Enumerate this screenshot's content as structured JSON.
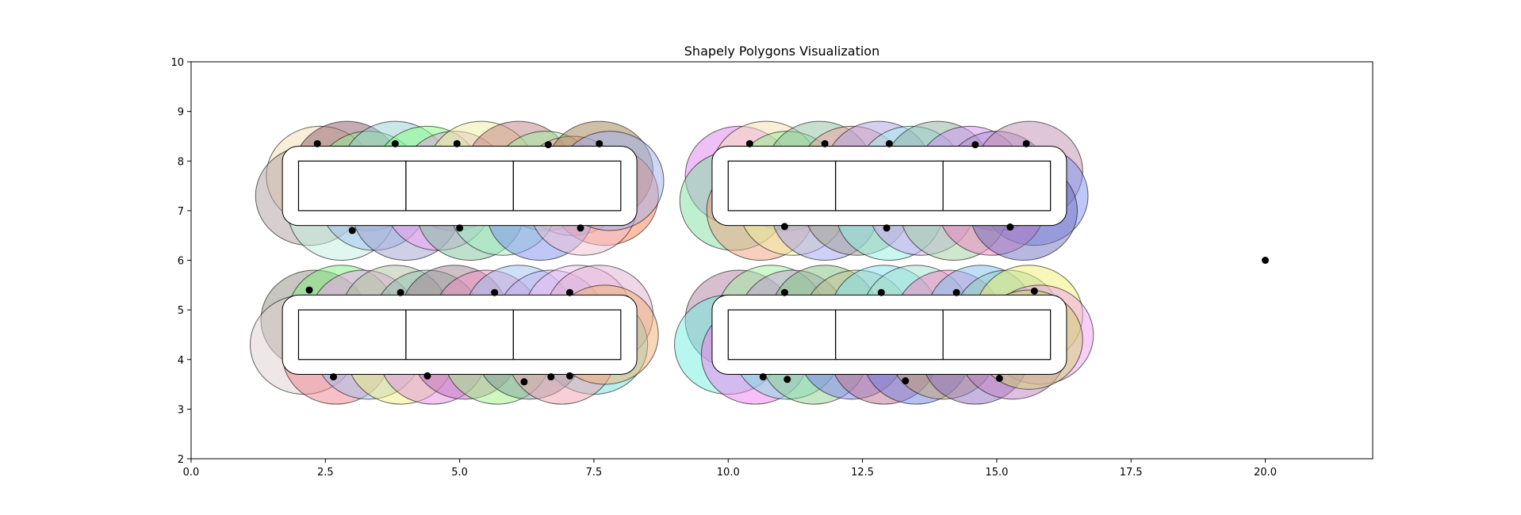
{
  "chart_data": {
    "type": "scatter",
    "title": "Shapely Polygons Visualization",
    "xlabel": "",
    "ylabel": "",
    "xlim": [
      0,
      22
    ],
    "ylim": [
      2,
      10
    ],
    "xticks": [
      0.0,
      2.5,
      5.0,
      7.5,
      10.0,
      12.5,
      15.0,
      17.5,
      20.0
    ],
    "xtick_labels": [
      "0.0",
      "2.5",
      "5.0",
      "7.5",
      "10.0",
      "12.5",
      "15.0",
      "17.5",
      "20.0"
    ],
    "yticks": [
      2,
      3,
      4,
      5,
      6,
      7,
      8,
      9,
      10
    ],
    "ytick_labels": [
      "2",
      "3",
      "4",
      "5",
      "6",
      "7",
      "8",
      "9",
      "10"
    ],
    "grid": false,
    "legend": "none",
    "point_color": "#000000",
    "circle_radius": 1.0,
    "circle_alpha": 0.5,
    "buffer_distance": 0.3,
    "rectangles": [
      {
        "x0": 2,
        "x1": 4,
        "y0": 7,
        "y1": 8
      },
      {
        "x0": 4,
        "x1": 6,
        "y0": 7,
        "y1": 8
      },
      {
        "x0": 6,
        "x1": 8,
        "y0": 7,
        "y1": 8
      },
      {
        "x0": 10,
        "x1": 12,
        "y0": 7,
        "y1": 8
      },
      {
        "x0": 12,
        "x1": 14,
        "y0": 7,
        "y1": 8
      },
      {
        "x0": 14,
        "x1": 16,
        "y0": 7,
        "y1": 8
      },
      {
        "x0": 2,
        "x1": 4,
        "y0": 4,
        "y1": 5
      },
      {
        "x0": 4,
        "x1": 6,
        "y0": 4,
        "y1": 5
      },
      {
        "x0": 6,
        "x1": 8,
        "y0": 4,
        "y1": 5
      },
      {
        "x0": 10,
        "x1": 12,
        "y0": 4,
        "y1": 5
      },
      {
        "x0": 12,
        "x1": 14,
        "y0": 4,
        "y1": 5
      },
      {
        "x0": 14,
        "x1": 16,
        "y0": 4,
        "y1": 5
      }
    ],
    "circles": [
      {
        "x": 2.4,
        "y": 7.7,
        "color": "#f5deb3"
      },
      {
        "x": 2.9,
        "y": 7.8,
        "color": "#8b5a6a"
      },
      {
        "x": 3.3,
        "y": 7.6,
        "color": "#90ee90"
      },
      {
        "x": 3.8,
        "y": 7.8,
        "color": "#9ad0d0"
      },
      {
        "x": 4.4,
        "y": 7.7,
        "color": "#7fff7f"
      },
      {
        "x": 4.9,
        "y": 7.6,
        "color": "#e0a0e0"
      },
      {
        "x": 5.4,
        "y": 7.8,
        "color": "#f0f0a0"
      },
      {
        "x": 6.1,
        "y": 7.8,
        "color": "#c08080"
      },
      {
        "x": 6.6,
        "y": 7.6,
        "color": "#a0f0a0"
      },
      {
        "x": 7.1,
        "y": 7.5,
        "color": "#ffb0c0"
      },
      {
        "x": 7.6,
        "y": 7.8,
        "color": "#a08050"
      },
      {
        "x": 7.7,
        "y": 7.3,
        "color": "#ff7f50"
      },
      {
        "x": 2.2,
        "y": 7.3,
        "color": "#b0a0a0"
      },
      {
        "x": 2.8,
        "y": 7.0,
        "color": "#c0f0e0"
      },
      {
        "x": 3.4,
        "y": 7.2,
        "color": "#a0c0f0"
      },
      {
        "x": 4.0,
        "y": 7.0,
        "color": "#a0a0d0"
      },
      {
        "x": 4.6,
        "y": 7.2,
        "color": "#f0a0f0"
      },
      {
        "x": 5.2,
        "y": 7.0,
        "color": "#80c0a0"
      },
      {
        "x": 5.8,
        "y": 7.1,
        "color": "#a0f0c0"
      },
      {
        "x": 6.5,
        "y": 7.0,
        "color": "#8090f0"
      },
      {
        "x": 7.3,
        "y": 7.1,
        "color": "#f0c0d0"
      },
      {
        "x": 7.8,
        "y": 7.6,
        "color": "#a0b0f0"
      },
      {
        "x": 10.2,
        "y": 7.7,
        "color": "#e080f0"
      },
      {
        "x": 10.7,
        "y": 7.8,
        "color": "#f5deb3"
      },
      {
        "x": 11.1,
        "y": 7.6,
        "color": "#90ee90"
      },
      {
        "x": 11.7,
        "y": 7.8,
        "color": "#90c0a0"
      },
      {
        "x": 12.3,
        "y": 7.7,
        "color": "#f0a0a0"
      },
      {
        "x": 12.8,
        "y": 7.8,
        "color": "#b0a0e0"
      },
      {
        "x": 13.4,
        "y": 7.7,
        "color": "#a0f0f0"
      },
      {
        "x": 13.9,
        "y": 7.8,
        "color": "#90b0a0"
      },
      {
        "x": 14.5,
        "y": 7.7,
        "color": "#d090f0"
      },
      {
        "x": 15.0,
        "y": 7.6,
        "color": "#b090d0"
      },
      {
        "x": 15.6,
        "y": 7.8,
        "color": "#c090b0"
      },
      {
        "x": 15.7,
        "y": 7.3,
        "color": "#8090f0"
      },
      {
        "x": 10.1,
        "y": 7.2,
        "color": "#80e0a0"
      },
      {
        "x": 10.6,
        "y": 7.0,
        "color": "#f0a080"
      },
      {
        "x": 11.2,
        "y": 7.1,
        "color": "#f0f0a0"
      },
      {
        "x": 11.8,
        "y": 7.0,
        "color": "#a0a0f0"
      },
      {
        "x": 12.4,
        "y": 7.1,
        "color": "#a0a090"
      },
      {
        "x": 13.0,
        "y": 7.0,
        "color": "#90f0e0"
      },
      {
        "x": 13.6,
        "y": 7.1,
        "color": "#d0a0f0"
      },
      {
        "x": 14.2,
        "y": 7.0,
        "color": "#a0d0a0"
      },
      {
        "x": 14.9,
        "y": 7.1,
        "color": "#f080c0"
      },
      {
        "x": 15.5,
        "y": 7.0,
        "color": "#7070c0"
      },
      {
        "x": 2.3,
        "y": 4.8,
        "color": "#909080"
      },
      {
        "x": 2.8,
        "y": 4.9,
        "color": "#80f080"
      },
      {
        "x": 3.2,
        "y": 4.8,
        "color": "#f0a0f0"
      },
      {
        "x": 3.8,
        "y": 4.9,
        "color": "#b0c0a0"
      },
      {
        "x": 4.4,
        "y": 4.8,
        "color": "#90c0b0"
      },
      {
        "x": 4.9,
        "y": 4.9,
        "color": "#a08090"
      },
      {
        "x": 5.5,
        "y": 4.8,
        "color": "#f090c0"
      },
      {
        "x": 6.1,
        "y": 4.9,
        "color": "#a0c0f0"
      },
      {
        "x": 6.7,
        "y": 4.8,
        "color": "#c0b0f0"
      },
      {
        "x": 7.2,
        "y": 4.9,
        "color": "#f0c0f0"
      },
      {
        "x": 7.6,
        "y": 4.9,
        "color": "#e0b0d0"
      },
      {
        "x": 7.5,
        "y": 4.3,
        "color": "#70e0e0"
      },
      {
        "x": 2.1,
        "y": 4.3,
        "color": "#e0d0d0"
      },
      {
        "x": 2.7,
        "y": 4.1,
        "color": "#f08090"
      },
      {
        "x": 3.3,
        "y": 4.2,
        "color": "#a0c0f0"
      },
      {
        "x": 3.9,
        "y": 4.1,
        "color": "#f0f080"
      },
      {
        "x": 4.5,
        "y": 4.1,
        "color": "#e090e0"
      },
      {
        "x": 5.1,
        "y": 4.2,
        "color": "#c070c0"
      },
      {
        "x": 5.7,
        "y": 4.1,
        "color": "#a0f080"
      },
      {
        "x": 6.3,
        "y": 4.2,
        "color": "#80a0a0"
      },
      {
        "x": 6.9,
        "y": 4.1,
        "color": "#f0a0b0"
      },
      {
        "x": 7.7,
        "y": 4.5,
        "color": "#f0b070"
      },
      {
        "x": 10.2,
        "y": 4.8,
        "color": "#b080a0"
      },
      {
        "x": 10.8,
        "y": 4.9,
        "color": "#a0f0a0"
      },
      {
        "x": 11.2,
        "y": 4.8,
        "color": "#c0a0d0"
      },
      {
        "x": 11.8,
        "y": 4.9,
        "color": "#80c080"
      },
      {
        "x": 12.4,
        "y": 4.8,
        "color": "#c0c090"
      },
      {
        "x": 12.9,
        "y": 4.9,
        "color": "#80e0f0"
      },
      {
        "x": 13.5,
        "y": 4.9,
        "color": "#a0e0d0"
      },
      {
        "x": 14.1,
        "y": 4.8,
        "color": "#f080c0"
      },
      {
        "x": 14.7,
        "y": 4.9,
        "color": "#80c0f0"
      },
      {
        "x": 15.2,
        "y": 4.8,
        "color": "#90d0c0"
      },
      {
        "x": 15.6,
        "y": 4.9,
        "color": "#f0f070"
      },
      {
        "x": 15.8,
        "y": 4.5,
        "color": "#f0a0f0"
      },
      {
        "x": 10.0,
        "y": 4.3,
        "color": "#70f0e0"
      },
      {
        "x": 10.5,
        "y": 4.1,
        "color": "#f080f0"
      },
      {
        "x": 11.1,
        "y": 4.2,
        "color": "#80e0e0"
      },
      {
        "x": 11.6,
        "y": 4.1,
        "color": "#90d090"
      },
      {
        "x": 12.3,
        "y": 4.2,
        "color": "#8080f0"
      },
      {
        "x": 12.9,
        "y": 4.1,
        "color": "#c07090"
      },
      {
        "x": 13.5,
        "y": 4.1,
        "color": "#7080e0"
      },
      {
        "x": 14.0,
        "y": 4.2,
        "color": "#c0a070"
      },
      {
        "x": 14.6,
        "y": 4.1,
        "color": "#9070c0"
      },
      {
        "x": 15.3,
        "y": 4.2,
        "color": "#c080c0"
      },
      {
        "x": 15.6,
        "y": 4.4,
        "color": "#d0d070"
      }
    ],
    "points": [
      {
        "x": 2.35,
        "y": 8.35
      },
      {
        "x": 3.8,
        "y": 8.35
      },
      {
        "x": 4.95,
        "y": 8.35
      },
      {
        "x": 6.65,
        "y": 8.33
      },
      {
        "x": 7.6,
        "y": 8.35
      },
      {
        "x": 3.0,
        "y": 6.6
      },
      {
        "x": 5.0,
        "y": 6.65
      },
      {
        "x": 7.25,
        "y": 6.65
      },
      {
        "x": 10.4,
        "y": 8.35
      },
      {
        "x": 11.8,
        "y": 8.35
      },
      {
        "x": 13.0,
        "y": 8.35
      },
      {
        "x": 14.6,
        "y": 8.33
      },
      {
        "x": 15.55,
        "y": 8.35
      },
      {
        "x": 11.05,
        "y": 6.68
      },
      {
        "x": 12.95,
        "y": 6.65
      },
      {
        "x": 15.25,
        "y": 6.67
      },
      {
        "x": 2.2,
        "y": 5.4
      },
      {
        "x": 3.9,
        "y": 5.35
      },
      {
        "x": 5.65,
        "y": 5.35
      },
      {
        "x": 7.05,
        "y": 5.35
      },
      {
        "x": 2.65,
        "y": 3.65
      },
      {
        "x": 4.4,
        "y": 3.67
      },
      {
        "x": 6.2,
        "y": 3.55
      },
      {
        "x": 6.7,
        "y": 3.65
      },
      {
        "x": 7.05,
        "y": 3.67
      },
      {
        "x": 11.05,
        "y": 5.35
      },
      {
        "x": 12.85,
        "y": 5.35
      },
      {
        "x": 14.25,
        "y": 5.35
      },
      {
        "x": 15.7,
        "y": 5.38
      },
      {
        "x": 10.65,
        "y": 3.65
      },
      {
        "x": 11.1,
        "y": 3.6
      },
      {
        "x": 13.3,
        "y": 3.57
      },
      {
        "x": 15.05,
        "y": 3.62
      },
      {
        "x": 20.0,
        "y": 6.0
      }
    ]
  }
}
